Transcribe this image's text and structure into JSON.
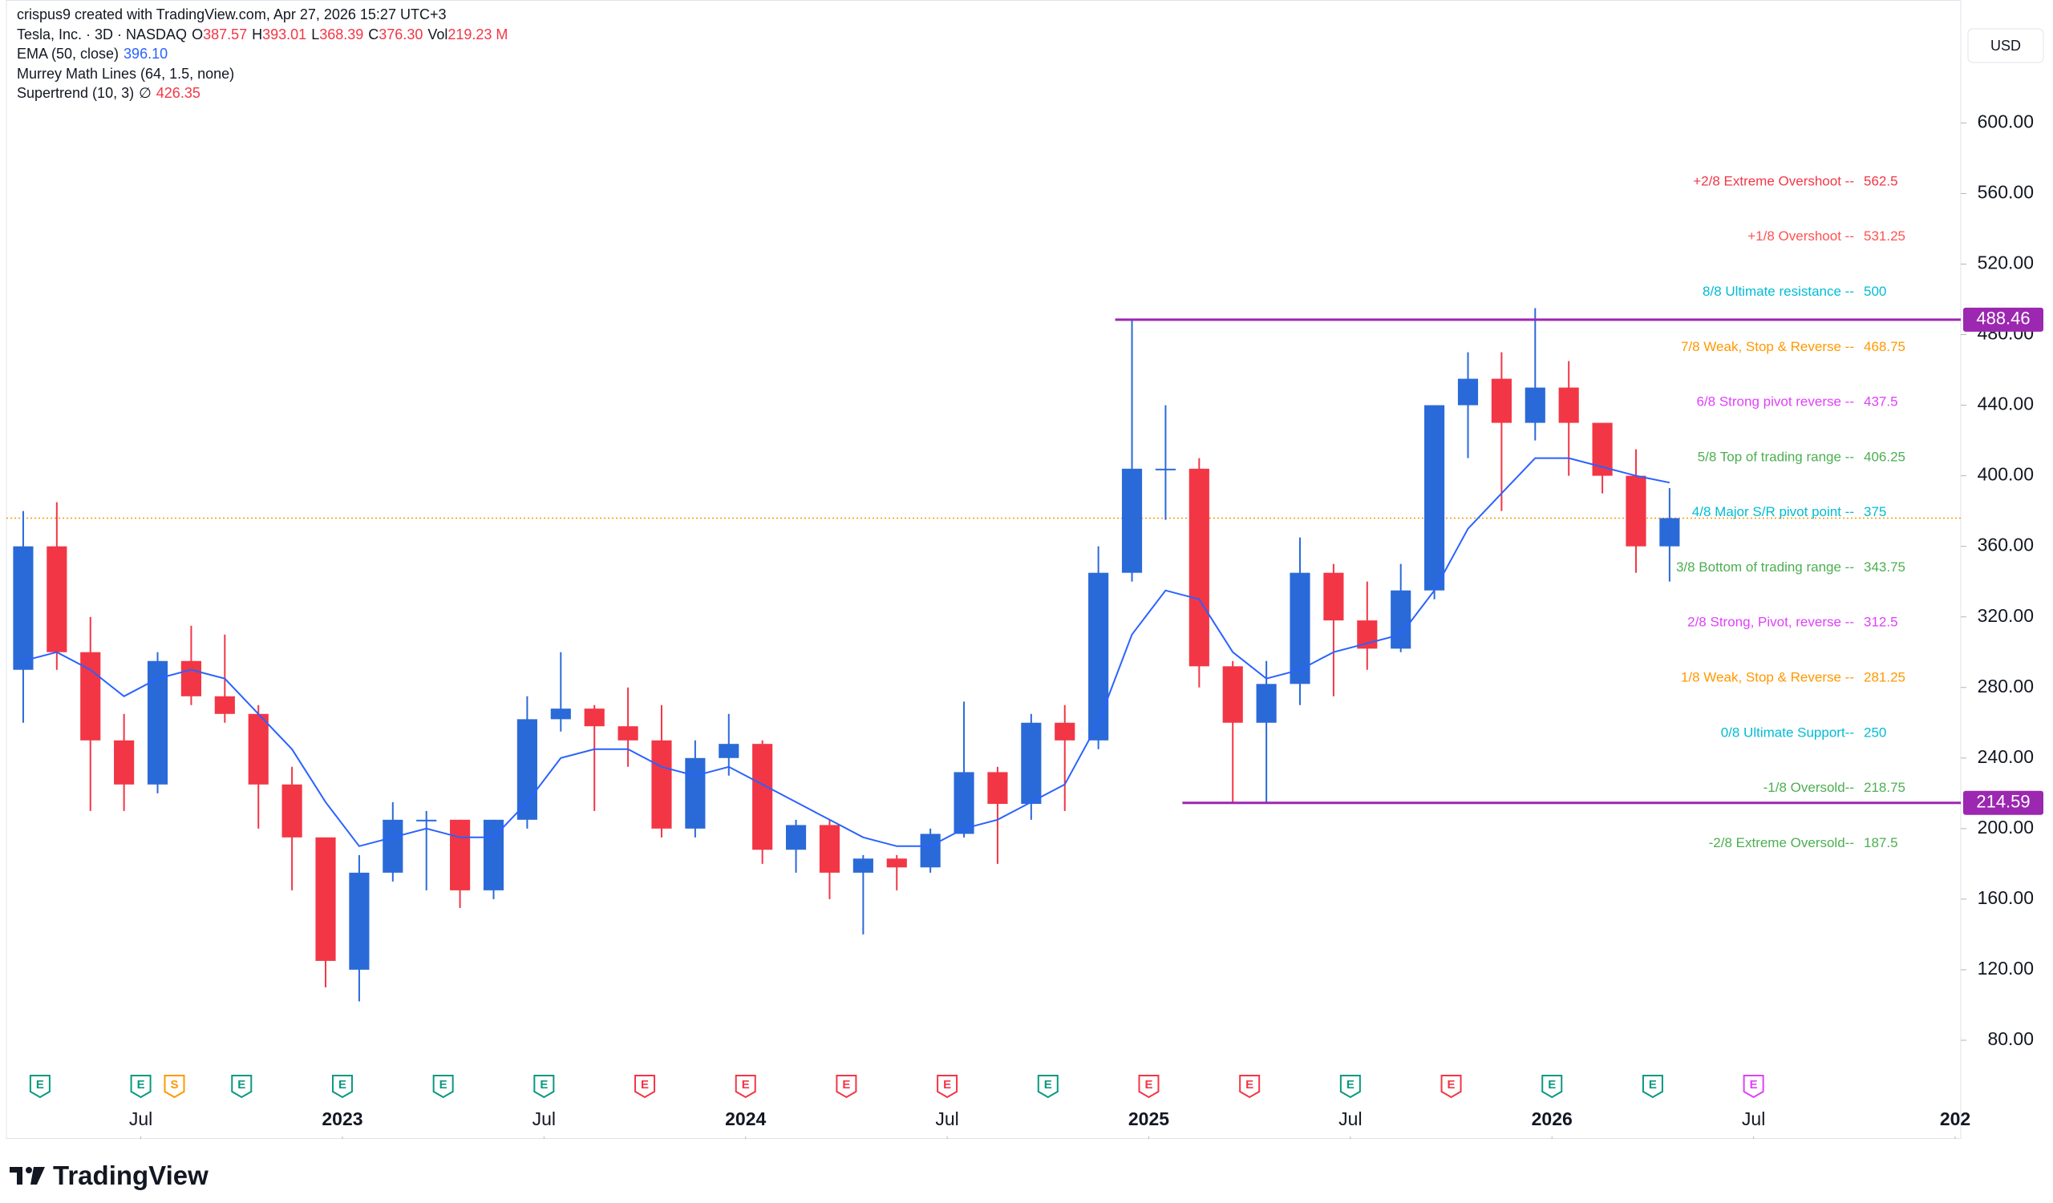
{
  "header": {
    "credit": "crispus9 created with TradingView.com, Apr 27, 2026 15:27 UTC+3",
    "currency": "USD",
    "brand": "TradingView"
  },
  "chart_data": {
    "type": "candlestick",
    "title": "Tesla, Inc. · 3D · NASDAQ",
    "ohlc_legend": [
      {
        "key": "O",
        "text": "387.57"
      },
      {
        "key": "H",
        "text": "393.01"
      },
      {
        "key": "L",
        "text": "368.39"
      },
      {
        "key": "C",
        "text": "376.30"
      },
      {
        "key": "Vol",
        "text": "219.23 M"
      }
    ],
    "indicators": [
      {
        "name": "EMA (50, close)",
        "value": "396.10",
        "color": "#2962ff"
      },
      {
        "name": "Murrey Math Lines (64, 1.5, none)"
      },
      {
        "name": "Supertrend (10, 3)",
        "symbol": "∅",
        "value": "426.35",
        "color": "#f23645"
      }
    ],
    "x": [
      "2022-03",
      "2022-04",
      "2022-05",
      "2022-06",
      "2022-07",
      "2022-08",
      "2022-09",
      "2022-10",
      "2022-11",
      "2022-12",
      "2023-01",
      "2023-02",
      "2023-03",
      "2023-04",
      "2023-05",
      "2023-06",
      "2023-07",
      "2023-08",
      "2023-09",
      "2023-10",
      "2023-11",
      "2023-12",
      "2024-01",
      "2024-02",
      "2024-03",
      "2024-04",
      "2024-05",
      "2024-06",
      "2024-07",
      "2024-08",
      "2024-09",
      "2024-10",
      "2024-11",
      "2024-12",
      "2025-01",
      "2025-02",
      "2025-03",
      "2025-04",
      "2025-05",
      "2025-06",
      "2025-07",
      "2025-08",
      "2025-09",
      "2025-10",
      "2025-11",
      "2025-12",
      "2026-01",
      "2026-02",
      "2026-03",
      "2026-04"
    ],
    "open": [
      290,
      360,
      300,
      250,
      225,
      295,
      275,
      265,
      225,
      195,
      120,
      175,
      205,
      205,
      165,
      205,
      262,
      268,
      258,
      250,
      200,
      240,
      248,
      188,
      202,
      175,
      183,
      178,
      197,
      232,
      214,
      260,
      250,
      345,
      404,
      404,
      292,
      260,
      282,
      345,
      318,
      302,
      335,
      440,
      455,
      430,
      450,
      430,
      400,
      360
    ],
    "high": [
      380,
      385,
      320,
      265,
      300,
      315,
      310,
      270,
      235,
      195,
      185,
      215,
      210,
      205,
      205,
      275,
      300,
      270,
      280,
      270,
      250,
      265,
      250,
      205,
      205,
      185,
      185,
      200,
      272,
      235,
      265,
      270,
      360,
      488,
      440,
      410,
      295,
      295,
      365,
      350,
      340,
      350,
      440,
      470,
      470,
      495,
      465,
      430,
      415,
      393
    ],
    "low": [
      260,
      290,
      210,
      210,
      220,
      270,
      260,
      200,
      165,
      110,
      102,
      170,
      165,
      155,
      160,
      200,
      255,
      210,
      235,
      195,
      195,
      230,
      180,
      175,
      160,
      140,
      165,
      175,
      195,
      180,
      205,
      210,
      245,
      340,
      375,
      280,
      215,
      215,
      270,
      275,
      290,
      300,
      330,
      410,
      380,
      420,
      400,
      390,
      345,
      340
    ],
    "close": [
      360,
      300,
      250,
      225,
      295,
      275,
      265,
      225,
      195,
      125,
      175,
      205,
      205,
      165,
      205,
      262,
      268,
      258,
      250,
      200,
      240,
      248,
      188,
      202,
      175,
      183,
      178,
      197,
      232,
      214,
      260,
      250,
      345,
      404,
      404,
      292,
      260,
      282,
      345,
      318,
      302,
      335,
      440,
      455,
      430,
      450,
      430,
      400,
      360,
      376
    ],
    "ema": {
      "color": "#2962ff",
      "values": [
        295,
        300,
        290,
        275,
        285,
        290,
        285,
        265,
        245,
        215,
        190,
        195,
        200,
        195,
        195,
        215,
        240,
        245,
        245,
        235,
        230,
        235,
        225,
        215,
        205,
        195,
        190,
        190,
        200,
        205,
        215,
        225,
        260,
        310,
        335,
        330,
        300,
        285,
        290,
        300,
        305,
        310,
        335,
        370,
        390,
        410,
        410,
        405,
        400,
        396.1
      ]
    },
    "up_color": "#2a6ad8",
    "down_color": "#f23645",
    "murrey": [
      {
        "label": "+2/8 Extreme Overshoot --",
        "value": 562.5,
        "color": "#f23645"
      },
      {
        "label": "+1/8 Overshoot --",
        "value": 531.25,
        "color": "#ff5252"
      },
      {
        "label": "8/8 Ultimate resistance --",
        "value": 500,
        "color": "#00bcd4"
      },
      {
        "label": "7/8 Weak, Stop & Reverse --",
        "value": 468.75,
        "color": "#ff9800"
      },
      {
        "label": "6/8 Strong pivot reverse --",
        "value": 437.5,
        "color": "#e040fb"
      },
      {
        "label": "5/8 Top of trading range --",
        "value": 406.25,
        "color": "#4caf50"
      },
      {
        "label": "4/8 Major S/R pivot point --",
        "value": 375,
        "color": "#00bcd4"
      },
      {
        "label": "3/8 Bottom of trading range --",
        "value": 343.75,
        "color": "#4caf50"
      },
      {
        "label": "2/8 Strong, Pivot, reverse --",
        "value": 312.5,
        "color": "#e040fb"
      },
      {
        "label": "1/8 Weak, Stop & Reverse --",
        "value": 281.25,
        "color": "#ff9800"
      },
      {
        "label": "0/8 Ultimate Support--",
        "value": 250,
        "color": "#00bcd4"
      },
      {
        "label": "-1/8 Oversold--",
        "value": 218.75,
        "color": "#4caf50"
      },
      {
        "label": "-2/8 Extreme Oversold--",
        "value": 187.5,
        "color": "#4caf50"
      }
    ],
    "levels": [
      {
        "value": 488.46,
        "x": "2024-12",
        "color": "#9c27b0"
      },
      {
        "value": 214.59,
        "x": "2025-02",
        "color": "#9c27b0"
      }
    ],
    "events": [
      {
        "letter": "E",
        "x": "2022-04",
        "color": "#089981"
      },
      {
        "letter": "E",
        "x": "2022-07",
        "color": "#089981"
      },
      {
        "letter": "S",
        "x": "2022-08",
        "color": "#ff9800"
      },
      {
        "letter": "E",
        "x": "2022-10",
        "color": "#089981"
      },
      {
        "letter": "E",
        "x": "2023-01",
        "color": "#089981"
      },
      {
        "letter": "E",
        "x": "2023-04",
        "color": "#089981"
      },
      {
        "letter": "E",
        "x": "2023-07",
        "color": "#089981"
      },
      {
        "letter": "E",
        "x": "2023-10",
        "color": "#f23645"
      },
      {
        "letter": "E",
        "x": "2024-01",
        "color": "#f23645"
      },
      {
        "letter": "E",
        "x": "2024-04",
        "color": "#f23645"
      },
      {
        "letter": "E",
        "x": "2024-07",
        "color": "#f23645"
      },
      {
        "letter": "E",
        "x": "2024-10",
        "color": "#089981"
      },
      {
        "letter": "E",
        "x": "2025-01",
        "color": "#f23645"
      },
      {
        "letter": "E",
        "x": "2025-04",
        "color": "#f23645"
      },
      {
        "letter": "E",
        "x": "2025-07",
        "color": "#089981"
      },
      {
        "letter": "E",
        "x": "2025-10",
        "color": "#f23645"
      },
      {
        "letter": "E",
        "x": "2026-01",
        "color": "#089981"
      },
      {
        "letter": "E",
        "x": "2026-04",
        "color": "#089981"
      },
      {
        "letter": "E",
        "x": "2026-07",
        "color": "#e040fb"
      }
    ],
    "xlim": [
      "2022-03",
      "2027-01"
    ],
    "xticks": [
      {
        "value": "2022-07",
        "label": "Jul"
      },
      {
        "value": "2023-01",
        "label": "2023"
      },
      {
        "value": "2023-07",
        "label": "Jul"
      },
      {
        "value": "2024-01",
        "label": "2024"
      },
      {
        "value": "2024-07",
        "label": "Jul"
      },
      {
        "value": "2025-01",
        "label": "2025"
      },
      {
        "value": "2025-07",
        "label": "Jul"
      },
      {
        "value": "2026-01",
        "label": "2026"
      },
      {
        "value": "2026-07",
        "label": "Jul"
      },
      {
        "value": "2027-01",
        "label": "202"
      }
    ],
    "ylim": [
      24.1,
      669.7
    ],
    "yticks": [
      {
        "value": 80,
        "label": "80.00"
      },
      {
        "value": 120,
        "label": "120.00"
      },
      {
        "value": 160,
        "label": "160.00"
      },
      {
        "value": 200,
        "label": "200.00"
      },
      {
        "value": 240,
        "label": "240.00"
      },
      {
        "value": 280,
        "label": "280.00"
      },
      {
        "value": 320,
        "label": "320.00"
      },
      {
        "value": 360,
        "label": "360.00"
      },
      {
        "value": 400,
        "label": "400.00"
      },
      {
        "value": 440,
        "label": "440.00"
      },
      {
        "value": 480,
        "label": "480.00"
      },
      {
        "value": 520,
        "label": "520.00"
      },
      {
        "value": 560,
        "label": "560.00"
      },
      {
        "value": 600,
        "label": "600.00"
      }
    ]
  }
}
